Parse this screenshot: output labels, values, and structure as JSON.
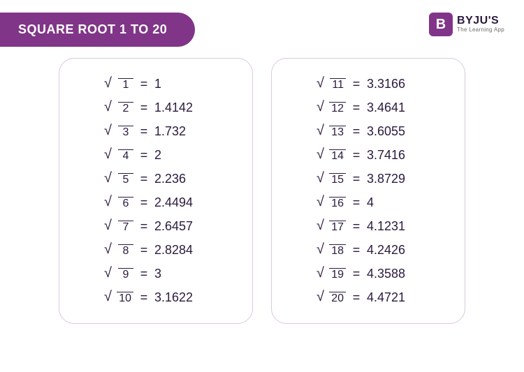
{
  "header": {
    "title": "SQUARE ROOT 1 TO 20",
    "title_bg": "#813588",
    "brand_name": "BYJU'S",
    "brand_tagline": "The Learning App",
    "brand_logo_letter": "B"
  },
  "style": {
    "card_border": "#d9c8e0",
    "text_color": "#2b1a3d",
    "background": "#ffffff"
  },
  "table": {
    "type": "table",
    "columns": [
      "n",
      "sqrt(n)"
    ],
    "left": [
      {
        "n": "1",
        "v": "1"
      },
      {
        "n": "2",
        "v": "1.4142"
      },
      {
        "n": "3",
        "v": "1.732"
      },
      {
        "n": "4",
        "v": "2"
      },
      {
        "n": "5",
        "v": "2.236"
      },
      {
        "n": "6",
        "v": "2.4494"
      },
      {
        "n": "7",
        "v": "2.6457"
      },
      {
        "n": "8",
        "v": "2.8284"
      },
      {
        "n": "9",
        "v": "3"
      },
      {
        "n": "10",
        "v": "3.1622"
      }
    ],
    "right": [
      {
        "n": "11",
        "v": "3.3166"
      },
      {
        "n": "12",
        "v": "3.4641"
      },
      {
        "n": "13",
        "v": "3.6055"
      },
      {
        "n": "14",
        "v": "3.7416"
      },
      {
        "n": "15",
        "v": "3.8729"
      },
      {
        "n": "16",
        "v": "4"
      },
      {
        "n": "17",
        "v": "4.1231"
      },
      {
        "n": "18",
        "v": "4.2426"
      },
      {
        "n": "19",
        "v": "4.3588"
      },
      {
        "n": "20",
        "v": "4.4721"
      }
    ]
  }
}
